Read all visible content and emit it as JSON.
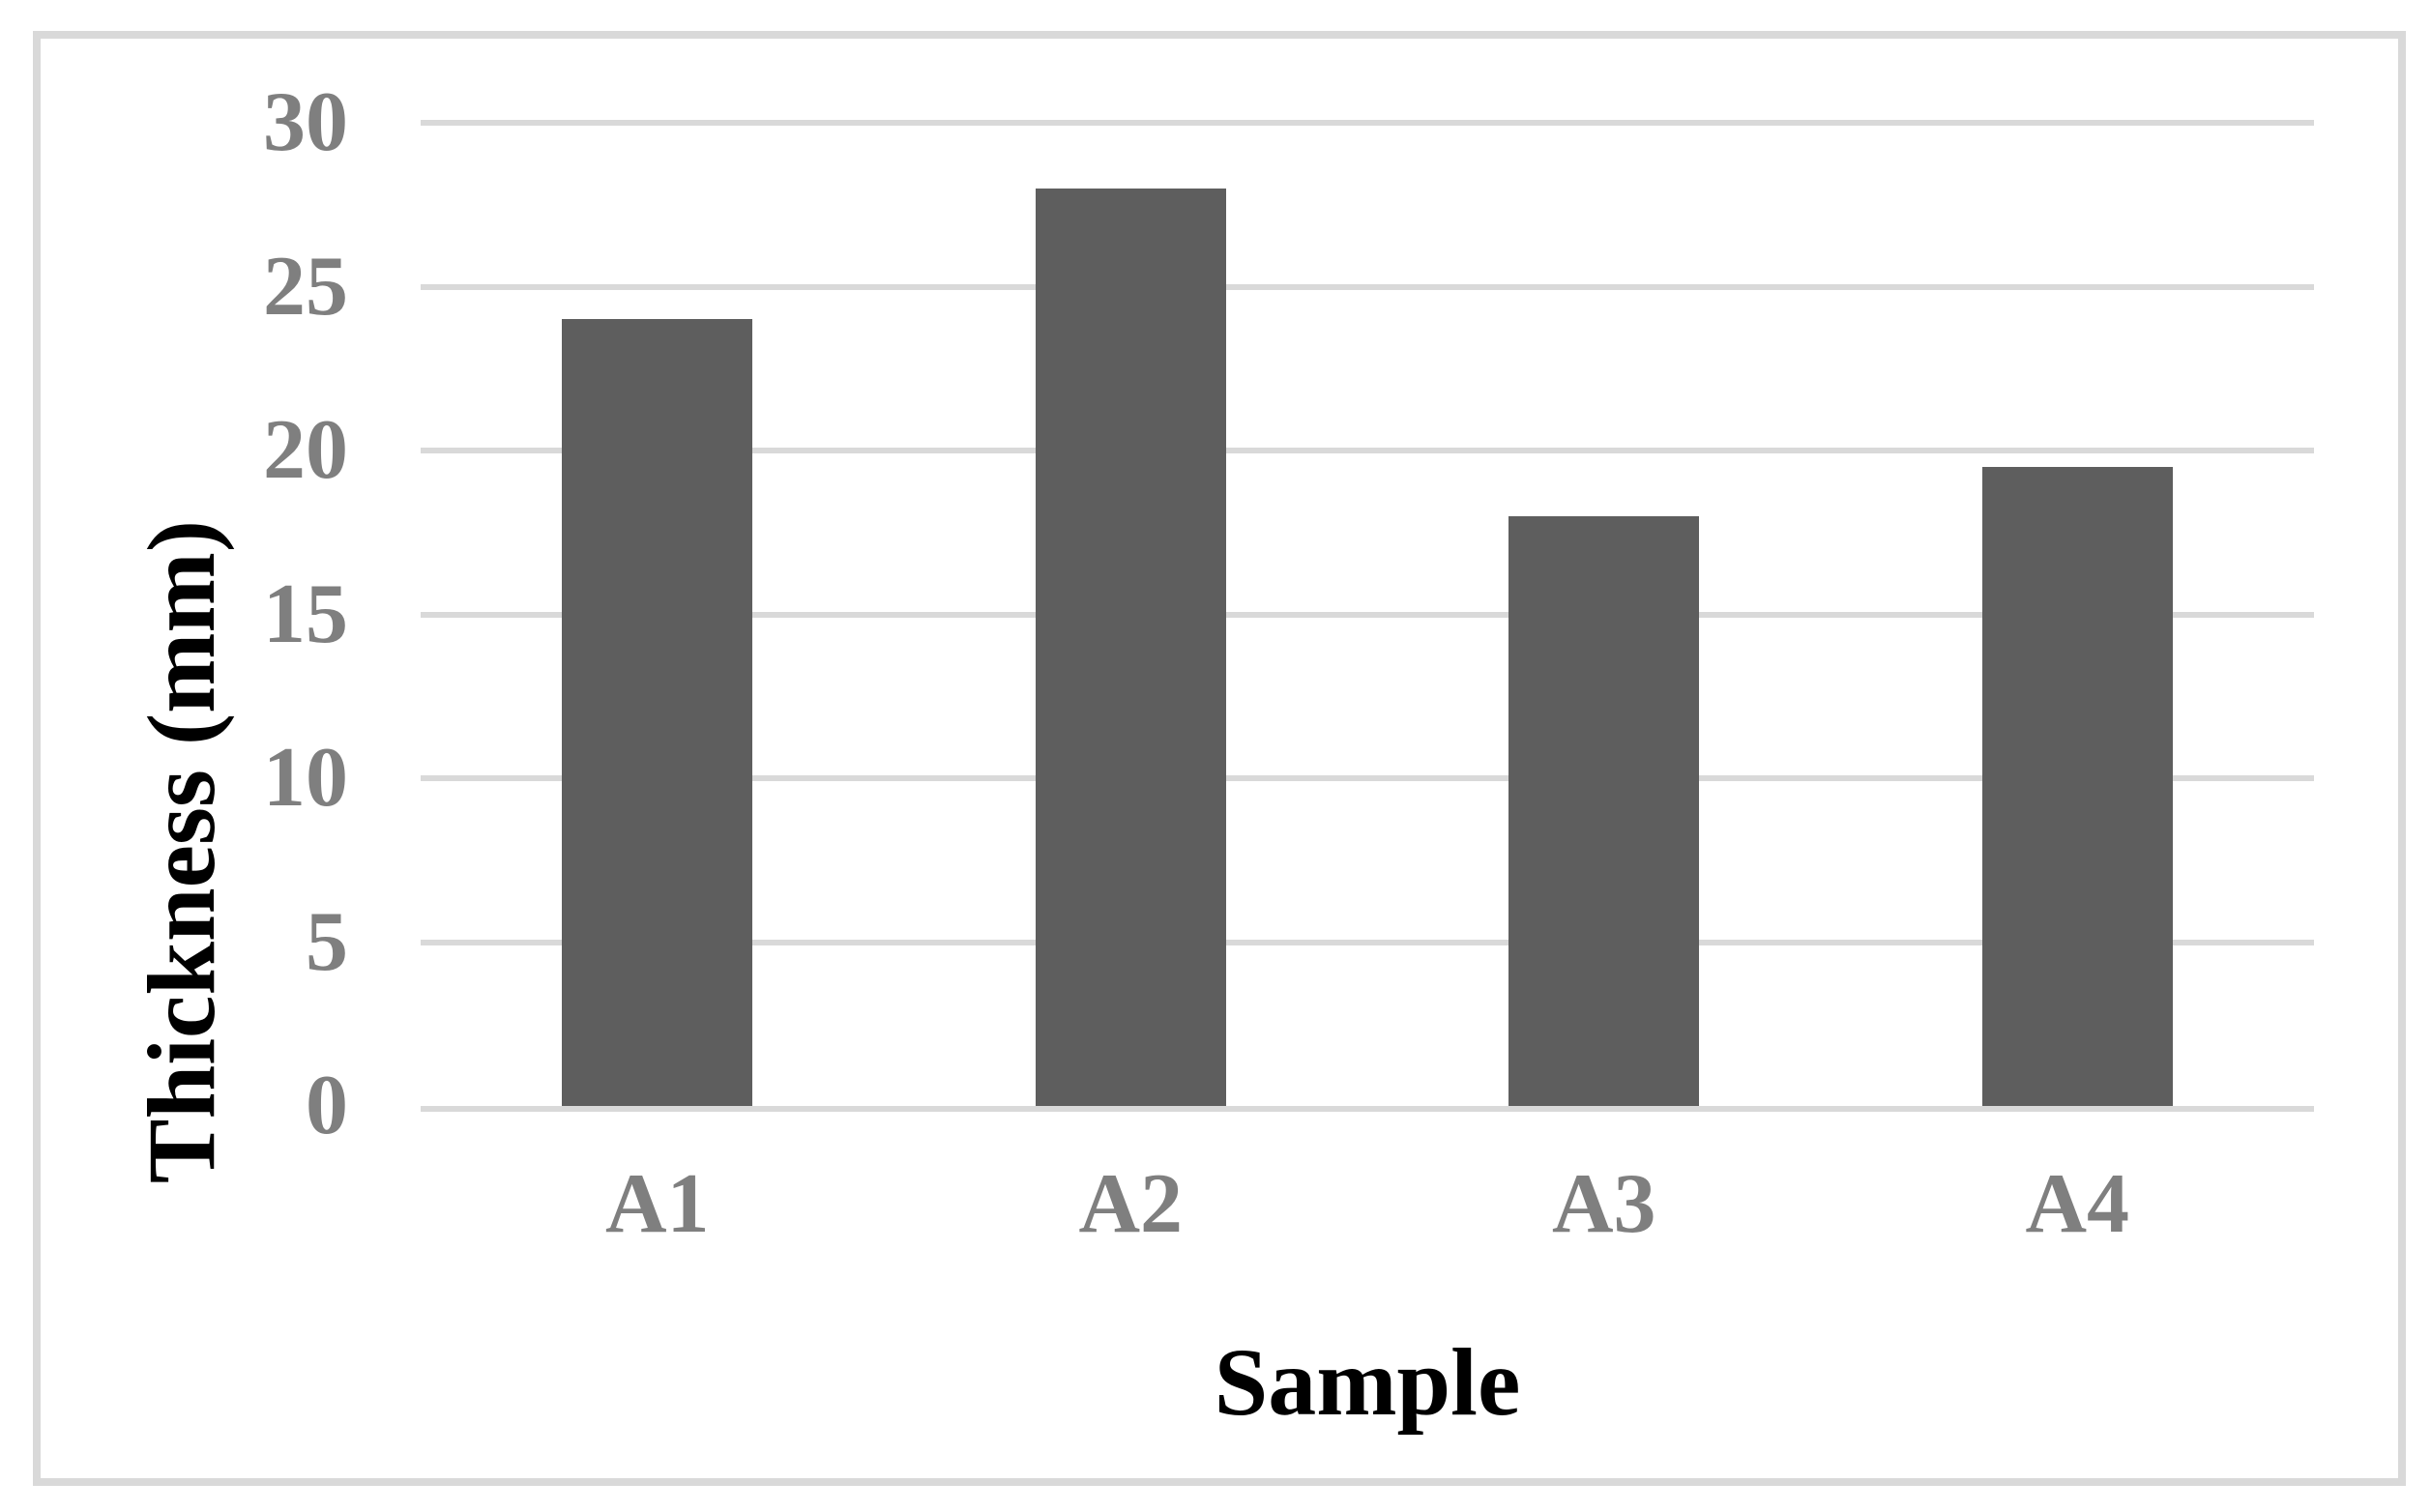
{
  "figure": {
    "background": "#FFFFFF",
    "frame_color": "#D9D9D9"
  },
  "chart_data": {
    "type": "bar",
    "categories": [
      "A1",
      "A2",
      "A3",
      "A4"
    ],
    "values": [
      24,
      28,
      18,
      19.5
    ],
    "title": "",
    "xlabel": "Sample",
    "ylabel": "Thickness (mm)",
    "ylim": [
      0,
      30
    ],
    "yticks": [
      0,
      5,
      10,
      15,
      20,
      25,
      30
    ],
    "grid": "horizontal",
    "legend": "none",
    "bar_color": "#5E5E5E",
    "gridline_color": "#D9D9D9",
    "tick_label_color": "#7F7F7F",
    "axis_title_color": "#000000"
  }
}
